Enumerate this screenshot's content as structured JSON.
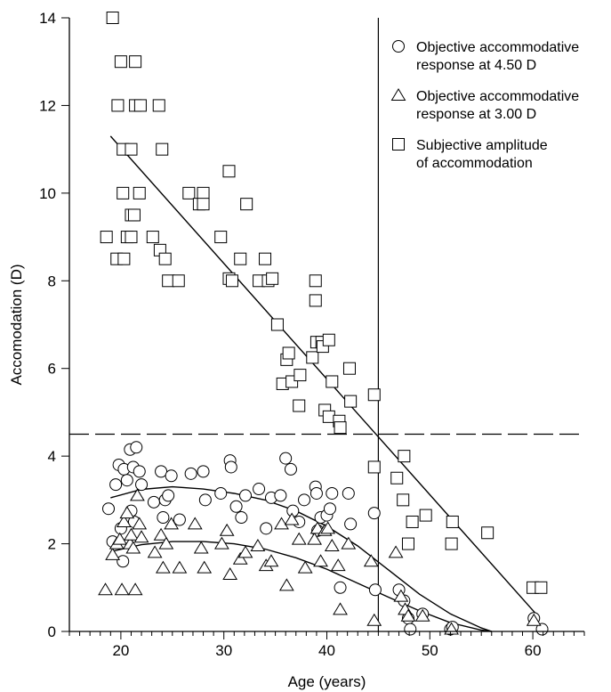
{
  "chart_data": {
    "type": "scatter",
    "xlabel": "Age (years)",
    "ylabel": "Accomodation (D)",
    "xlim": [
      15,
      65
    ],
    "ylim": [
      0,
      14
    ],
    "x_ticks": [
      20,
      30,
      40,
      50,
      60
    ],
    "y_ticks": [
      0,
      2,
      4,
      6,
      8,
      10,
      12,
      14
    ],
    "x_minor_step": 1,
    "grid": false,
    "legend_position": "top-right",
    "reference_lines": {
      "vertical_x": 45,
      "horizontal_dashed_y": 4.5
    },
    "series": [
      {
        "name": "Objective accommodative response at 4.50 D",
        "legend_lines": [
          "Objective accommodative",
          "response at 4.50 D"
        ],
        "marker": "circle",
        "points": [
          [
            18.8,
            2.8
          ],
          [
            19.2,
            2.05
          ],
          [
            19.5,
            3.35
          ],
          [
            19.8,
            3.8
          ],
          [
            20.0,
            2.35
          ],
          [
            20.2,
            1.6
          ],
          [
            20.3,
            3.7
          ],
          [
            20.6,
            3.45
          ],
          [
            20.9,
            4.15
          ],
          [
            21.0,
            2.75
          ],
          [
            21.2,
            3.75
          ],
          [
            21.3,
            2.5
          ],
          [
            21.5,
            4.2
          ],
          [
            21.8,
            3.65
          ],
          [
            22.0,
            3.35
          ],
          [
            23.2,
            2.95
          ],
          [
            23.9,
            3.65
          ],
          [
            24.1,
            2.6
          ],
          [
            24.3,
            3.0
          ],
          [
            24.6,
            3.1
          ],
          [
            24.9,
            3.55
          ],
          [
            25.7,
            2.55
          ],
          [
            26.8,
            3.6
          ],
          [
            28.0,
            3.65
          ],
          [
            28.2,
            3.0
          ],
          [
            29.7,
            3.15
          ],
          [
            30.6,
            3.9
          ],
          [
            30.7,
            3.75
          ],
          [
            31.2,
            2.85
          ],
          [
            31.7,
            2.6
          ],
          [
            32.1,
            3.1
          ],
          [
            33.4,
            3.25
          ],
          [
            34.1,
            2.35
          ],
          [
            34.6,
            3.05
          ],
          [
            35.5,
            3.1
          ],
          [
            36.0,
            3.95
          ],
          [
            36.5,
            3.7
          ],
          [
            36.7,
            2.75
          ],
          [
            37.3,
            2.5
          ],
          [
            37.8,
            3.0
          ],
          [
            38.9,
            3.3
          ],
          [
            39.0,
            3.15
          ],
          [
            39.1,
            2.3
          ],
          [
            39.4,
            2.6
          ],
          [
            40.0,
            2.65
          ],
          [
            40.3,
            2.8
          ],
          [
            40.5,
            3.15
          ],
          [
            41.3,
            1.0
          ],
          [
            42.1,
            3.15
          ],
          [
            42.3,
            2.45
          ],
          [
            44.6,
            2.7
          ],
          [
            44.7,
            0.95
          ],
          [
            47.0,
            0.95
          ],
          [
            47.5,
            0.7
          ],
          [
            47.9,
            0.3
          ],
          [
            48.1,
            0.05
          ],
          [
            49.3,
            0.4
          ],
          [
            52.0,
            0.05
          ],
          [
            52.2,
            0.1
          ],
          [
            60.1,
            0.3
          ],
          [
            60.9,
            0.05
          ]
        ]
      },
      {
        "name": "Objective accommodative response at 3.00 D",
        "legend_lines": [
          "Objective accommodative",
          "response at 3.00 D"
        ],
        "marker": "triangle",
        "points": [
          [
            18.5,
            0.95
          ],
          [
            19.2,
            1.75
          ],
          [
            19.6,
            2.0
          ],
          [
            19.9,
            2.1
          ],
          [
            20.1,
            0.95
          ],
          [
            20.3,
            2.5
          ],
          [
            20.6,
            2.7
          ],
          [
            20.9,
            2.0
          ],
          [
            21.0,
            2.2
          ],
          [
            21.2,
            1.9
          ],
          [
            21.4,
            0.95
          ],
          [
            21.6,
            3.1
          ],
          [
            21.8,
            2.45
          ],
          [
            22.0,
            2.15
          ],
          [
            23.3,
            1.8
          ],
          [
            23.9,
            2.2
          ],
          [
            24.1,
            1.45
          ],
          [
            24.4,
            2.0
          ],
          [
            24.9,
            2.45
          ],
          [
            25.7,
            1.45
          ],
          [
            27.2,
            2.45
          ],
          [
            27.8,
            1.9
          ],
          [
            28.1,
            1.45
          ],
          [
            29.8,
            2.0
          ],
          [
            30.3,
            2.3
          ],
          [
            30.6,
            1.3
          ],
          [
            31.6,
            1.65
          ],
          [
            32.1,
            1.8
          ],
          [
            33.3,
            1.95
          ],
          [
            34.1,
            1.5
          ],
          [
            34.6,
            1.6
          ],
          [
            35.6,
            2.45
          ],
          [
            36.1,
            1.05
          ],
          [
            36.6,
            2.55
          ],
          [
            37.3,
            2.1
          ],
          [
            37.9,
            1.45
          ],
          [
            38.8,
            2.1
          ],
          [
            39.1,
            2.35
          ],
          [
            39.4,
            1.6
          ],
          [
            39.8,
            2.3
          ],
          [
            40.1,
            2.35
          ],
          [
            40.5,
            1.95
          ],
          [
            41.1,
            1.5
          ],
          [
            41.3,
            0.5
          ],
          [
            42.1,
            2.0
          ],
          [
            44.3,
            1.6
          ],
          [
            44.6,
            0.25
          ],
          [
            46.7,
            1.8
          ],
          [
            47.2,
            0.8
          ],
          [
            47.6,
            0.5
          ],
          [
            47.9,
            0.35
          ],
          [
            49.3,
            0.35
          ],
          [
            52.1,
            0.05
          ],
          [
            60.1,
            0.25
          ]
        ]
      },
      {
        "name": "Subjective amplitude of accommodation",
        "legend_lines": [
          "Subjective amplitude",
          "of accommodation"
        ],
        "marker": "square",
        "points": [
          [
            18.6,
            9.0
          ],
          [
            19.2,
            14.0
          ],
          [
            19.6,
            8.5
          ],
          [
            19.7,
            12.0
          ],
          [
            20.0,
            13.0
          ],
          [
            20.2,
            10.0
          ],
          [
            20.2,
            11.0
          ],
          [
            20.3,
            8.5
          ],
          [
            20.6,
            9.0
          ],
          [
            21.0,
            11.0
          ],
          [
            21.0,
            9.0
          ],
          [
            21.0,
            9.5
          ],
          [
            21.3,
            9.5
          ],
          [
            21.4,
            13.0
          ],
          [
            21.4,
            12.0
          ],
          [
            21.8,
            10.0
          ],
          [
            21.9,
            12.0
          ],
          [
            23.1,
            9.0
          ],
          [
            23.7,
            12.0
          ],
          [
            23.8,
            8.7
          ],
          [
            24.0,
            11.0
          ],
          [
            24.3,
            8.5
          ],
          [
            24.6,
            8.0
          ],
          [
            25.6,
            8.0
          ],
          [
            26.6,
            10.0
          ],
          [
            27.6,
            9.75
          ],
          [
            28.0,
            10.0
          ],
          [
            28.0,
            9.75
          ],
          [
            29.7,
            9.0
          ],
          [
            30.5,
            10.5
          ],
          [
            30.5,
            8.05
          ],
          [
            30.8,
            8.0
          ],
          [
            31.6,
            8.5
          ],
          [
            32.2,
            9.75
          ],
          [
            33.4,
            8.0
          ],
          [
            34.0,
            8.5
          ],
          [
            34.3,
            8.0
          ],
          [
            34.7,
            8.05
          ],
          [
            35.2,
            7.0
          ],
          [
            35.7,
            5.65
          ],
          [
            36.1,
            6.2
          ],
          [
            36.3,
            6.35
          ],
          [
            36.6,
            5.7
          ],
          [
            37.3,
            5.15
          ],
          [
            37.4,
            5.85
          ],
          [
            38.6,
            6.25
          ],
          [
            38.9,
            8.0
          ],
          [
            38.9,
            7.55
          ],
          [
            39.0,
            6.6
          ],
          [
            39.5,
            6.6
          ],
          [
            39.6,
            6.5
          ],
          [
            39.8,
            5.05
          ],
          [
            40.2,
            4.9
          ],
          [
            40.2,
            6.65
          ],
          [
            40.5,
            5.7
          ],
          [
            41.2,
            4.8
          ],
          [
            41.3,
            4.65
          ],
          [
            42.2,
            6.0
          ],
          [
            42.3,
            5.25
          ],
          [
            44.6,
            5.4
          ],
          [
            44.6,
            3.75
          ],
          [
            46.8,
            3.5
          ],
          [
            47.4,
            3.0
          ],
          [
            47.5,
            4.0
          ],
          [
            47.9,
            2.0
          ],
          [
            48.3,
            2.5
          ],
          [
            49.6,
            2.65
          ],
          [
            52.1,
            2.0
          ],
          [
            52.2,
            2.5
          ],
          [
            55.6,
            2.25
          ],
          [
            60.0,
            1.0
          ],
          [
            60.8,
            1.0
          ]
        ]
      }
    ],
    "fit_lines": [
      {
        "target": "Subjective amplitude of accommodation",
        "kind": "linear",
        "x": [
          19,
          60.5
        ],
        "y": [
          11.3,
          0.35
        ]
      },
      {
        "target": "Objective accommodative response at 4.50 D",
        "kind": "curve",
        "x": [
          19,
          22,
          25,
          28,
          31,
          34,
          37,
          40,
          43,
          46,
          49,
          52,
          55,
          56
        ],
        "y": [
          3.05,
          3.24,
          3.3,
          3.25,
          3.15,
          3.0,
          2.75,
          2.4,
          1.95,
          1.4,
          0.85,
          0.4,
          0.08,
          0.0
        ]
      },
      {
        "target": "Objective accommodative response at 3.00 D",
        "kind": "curve",
        "x": [
          19,
          22,
          25,
          28,
          31,
          34,
          37,
          40,
          43,
          46,
          49,
          52,
          55,
          56
        ],
        "y": [
          1.82,
          1.98,
          2.05,
          2.05,
          2.0,
          1.88,
          1.68,
          1.42,
          1.1,
          0.78,
          0.47,
          0.2,
          0.03,
          0.0
        ]
      }
    ]
  }
}
